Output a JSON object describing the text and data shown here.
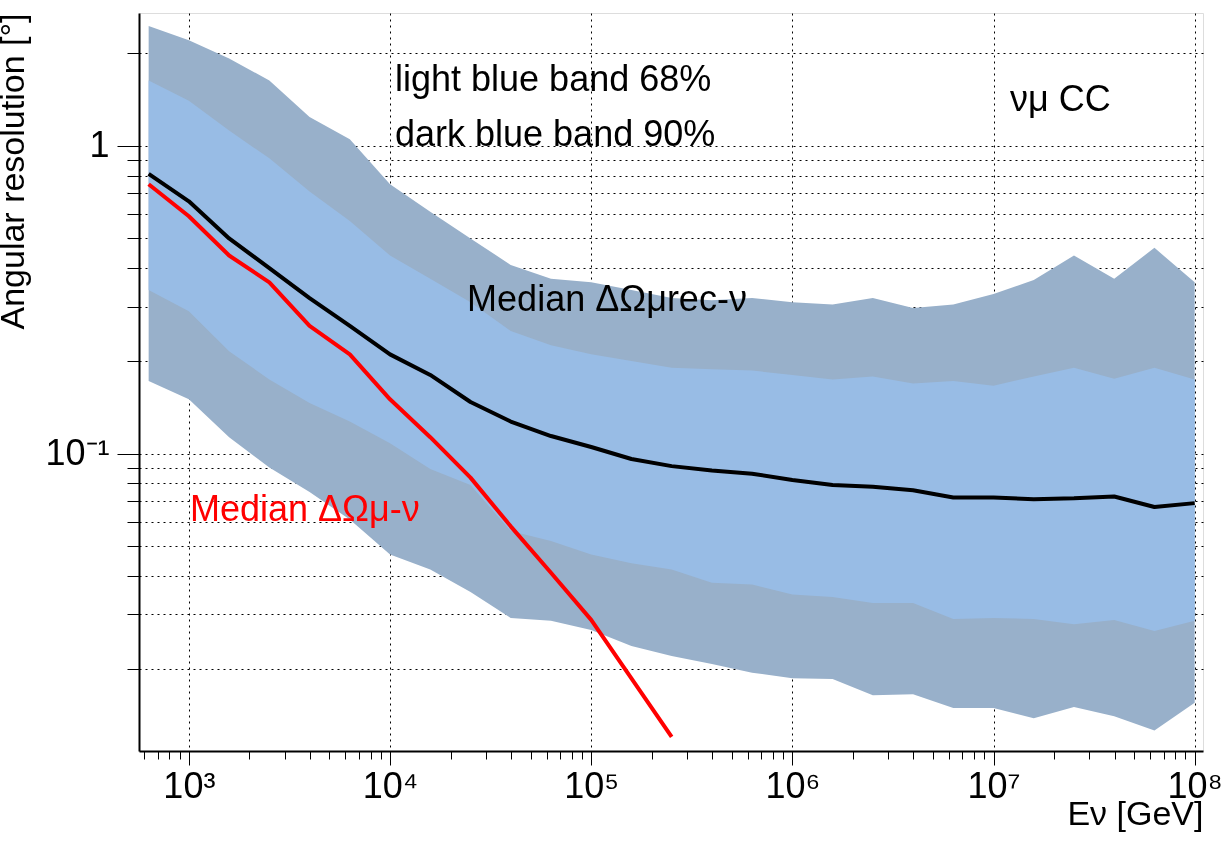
{
  "chart_data": {
    "type": "line",
    "xlabel": "Eν [GeV]",
    "ylabel": "Angular resolution [°]",
    "annotations": [
      "light blue band 68%",
      "dark blue band 90%",
      "νμ CC"
    ],
    "x": [
      631,
      1000,
      1585,
      2512,
      3981,
      6310,
      10000,
      15849,
      25119,
      39811,
      63096,
      100000,
      158489,
      251189,
      398107,
      630957,
      1000000,
      1585000,
      2512000,
      3981000,
      6310000,
      10000000,
      15850000,
      25120000,
      39810000,
      63100000,
      100000000
    ],
    "series": [
      {
        "color": "#98b0ca",
        "values": [
          null,
          null,
          null,
          null,
          null,
          null,
          null,
          null,
          null,
          null,
          null,
          null,
          null,
          null,
          null,
          null,
          null,
          null,
          null,
          null,
          null,
          null,
          null,
          null,
          null,
          null,
          null
        ],
        "lower": [
          0.172,
          0.15,
          0.113,
          0.09,
          0.075,
          0.061,
          0.047,
          0.042,
          0.0355,
          0.0292,
          0.0286,
          0.0267,
          0.0237,
          0.022,
          0.0207,
          0.0194,
          0.0186,
          0.0185,
          0.0164,
          0.0165,
          0.0149,
          0.0149,
          0.0138,
          0.015,
          0.014,
          0.0126,
          0.0155
        ],
        "upper": [
          2.45,
          2.2,
          1.92,
          1.63,
          1.24,
          1.05,
          0.75,
          0.61,
          0.5,
          0.41,
          0.37,
          0.36,
          0.34,
          0.32,
          0.315,
          0.32,
          0.31,
          0.305,
          0.32,
          0.297,
          0.305,
          0.33,
          0.366,
          0.44,
          0.37,
          0.466,
          0.36
        ]
      },
      {
        "color": "#98bce5",
        "values": [
          null,
          null,
          null,
          null,
          null,
          null,
          null,
          null,
          null,
          null,
          null,
          null,
          null,
          null,
          null,
          null,
          null,
          null,
          null,
          null,
          null,
          null,
          null,
          null,
          null,
          null,
          null
        ],
        "lower": [
          0.34,
          0.29,
          0.215,
          0.174,
          0.146,
          0.127,
          0.108,
          0.089,
          0.079,
          0.056,
          0.052,
          0.047,
          0.044,
          0.042,
          0.038,
          0.0375,
          0.0348,
          0.0342,
          0.0327,
          0.0327,
          0.029,
          0.0292,
          0.029,
          0.0279,
          0.0288,
          0.0265,
          0.0286
        ],
        "upper": [
          1.63,
          1.4,
          1.12,
          0.91,
          0.71,
          0.57,
          0.44,
          0.37,
          0.31,
          0.25,
          0.225,
          0.21,
          0.2,
          0.19,
          0.188,
          0.186,
          0.18,
          0.174,
          0.178,
          0.169,
          0.172,
          0.166,
          0.178,
          0.19,
          0.175,
          0.19,
          0.174
        ]
      },
      {
        "name": "Median ΔΩμrec-ν",
        "color": "#000000",
        "values": [
          0.81,
          0.66,
          0.5,
          0.4,
          0.32,
          0.26,
          0.21,
          0.18,
          0.147,
          0.127,
          0.114,
          0.105,
          0.096,
          0.091,
          0.088,
          0.086,
          0.082,
          0.079,
          0.078,
          0.076,
          0.072,
          0.072,
          0.071,
          0.0715,
          0.0725,
          0.067,
          0.069
        ]
      },
      {
        "name": "Median ΔΩμ-ν",
        "color": "#ff0000",
        "x": [
          631,
          1000,
          1585,
          2512,
          3981,
          6310,
          10000,
          15849,
          25119,
          39811,
          63096,
          100000,
          158489,
          251189
        ],
        "values": [
          0.75,
          0.59,
          0.44,
          0.36,
          0.26,
          0.21,
          0.15,
          0.113,
          0.0835,
          0.058,
          0.041,
          0.0288,
          0.0186,
          0.012
        ]
      }
    ],
    "log": "xy",
    "grid": true,
    "legend": false,
    "xlim": [
      565,
      110000000
    ],
    "ylim": [
      0.0108,
      2.7
    ],
    "xticks": [
      {
        "value": 600,
        "label": null
      },
      {
        "value": 700,
        "label": null
      },
      {
        "value": 800,
        "label": null
      },
      {
        "value": 900,
        "label": null
      },
      {
        "value": 1000,
        "label": "10³"
      },
      {
        "value": 2000,
        "label": null
      },
      {
        "value": 3000,
        "label": null
      },
      {
        "value": 4000,
        "label": null
      },
      {
        "value": 5000,
        "label": null
      },
      {
        "value": 6000,
        "label": null
      },
      {
        "value": 7000,
        "label": null
      },
      {
        "value": 8000,
        "label": null
      },
      {
        "value": 9000,
        "label": null
      },
      {
        "value": 10000,
        "label": "10⁴"
      },
      {
        "value": 20000,
        "label": null
      },
      {
        "value": 30000,
        "label": null
      },
      {
        "value": 40000,
        "label": null
      },
      {
        "value": 50000,
        "label": null
      },
      {
        "value": 60000,
        "label": null
      },
      {
        "value": 70000,
        "label": null
      },
      {
        "value": 80000,
        "label": null
      },
      {
        "value": 90000,
        "label": null
      },
      {
        "value": 100000,
        "label": "10⁵"
      },
      {
        "value": 200000,
        "label": null
      },
      {
        "value": 300000,
        "label": null
      },
      {
        "value": 400000,
        "label": null
      },
      {
        "value": 500000,
        "label": null
      },
      {
        "value": 600000,
        "label": null
      },
      {
        "value": 700000,
        "label": null
      },
      {
        "value": 800000,
        "label": null
      },
      {
        "value": 900000,
        "label": null
      },
      {
        "value": 1000000,
        "label": "10⁶"
      },
      {
        "value": 2000000,
        "label": null
      },
      {
        "value": 3000000,
        "label": null
      },
      {
        "value": 4000000,
        "label": null
      },
      {
        "value": 5000000,
        "label": null
      },
      {
        "value": 6000000,
        "label": null
      },
      {
        "value": 7000000,
        "label": null
      },
      {
        "value": 8000000,
        "label": null
      },
      {
        "value": 9000000,
        "label": null
      },
      {
        "value": 10000000,
        "label": "10⁷"
      },
      {
        "value": 20000000,
        "label": null
      },
      {
        "value": 30000000,
        "label": null
      },
      {
        "value": 40000000,
        "label": null
      },
      {
        "value": 50000000,
        "label": null
      },
      {
        "value": 60000000,
        "label": null
      },
      {
        "value": 70000000,
        "label": null
      },
      {
        "value": 80000000,
        "label": null
      },
      {
        "value": 90000000,
        "label": null
      },
      {
        "value": 100000000,
        "label": "10⁸"
      }
    ],
    "yticks": [
      {
        "value": 0.02,
        "label": null
      },
      {
        "value": 0.03,
        "label": null
      },
      {
        "value": 0.04,
        "label": null
      },
      {
        "value": 0.05,
        "label": null
      },
      {
        "value": 0.06,
        "label": null
      },
      {
        "value": 0.07,
        "label": null
      },
      {
        "value": 0.08,
        "label": null
      },
      {
        "value": 0.09,
        "label": null
      },
      {
        "value": 0.1,
        "label": "10⁻¹"
      },
      {
        "value": 0.2,
        "label": null
      },
      {
        "value": 0.3,
        "label": null
      },
      {
        "value": 0.4,
        "label": null
      },
      {
        "value": 0.5,
        "label": null
      },
      {
        "value": 0.6,
        "label": null
      },
      {
        "value": 0.7,
        "label": null
      },
      {
        "value": 0.8,
        "label": null
      },
      {
        "value": 0.9,
        "label": null
      },
      1,
      {
        "value": 2,
        "label": null
      }
    ]
  }
}
